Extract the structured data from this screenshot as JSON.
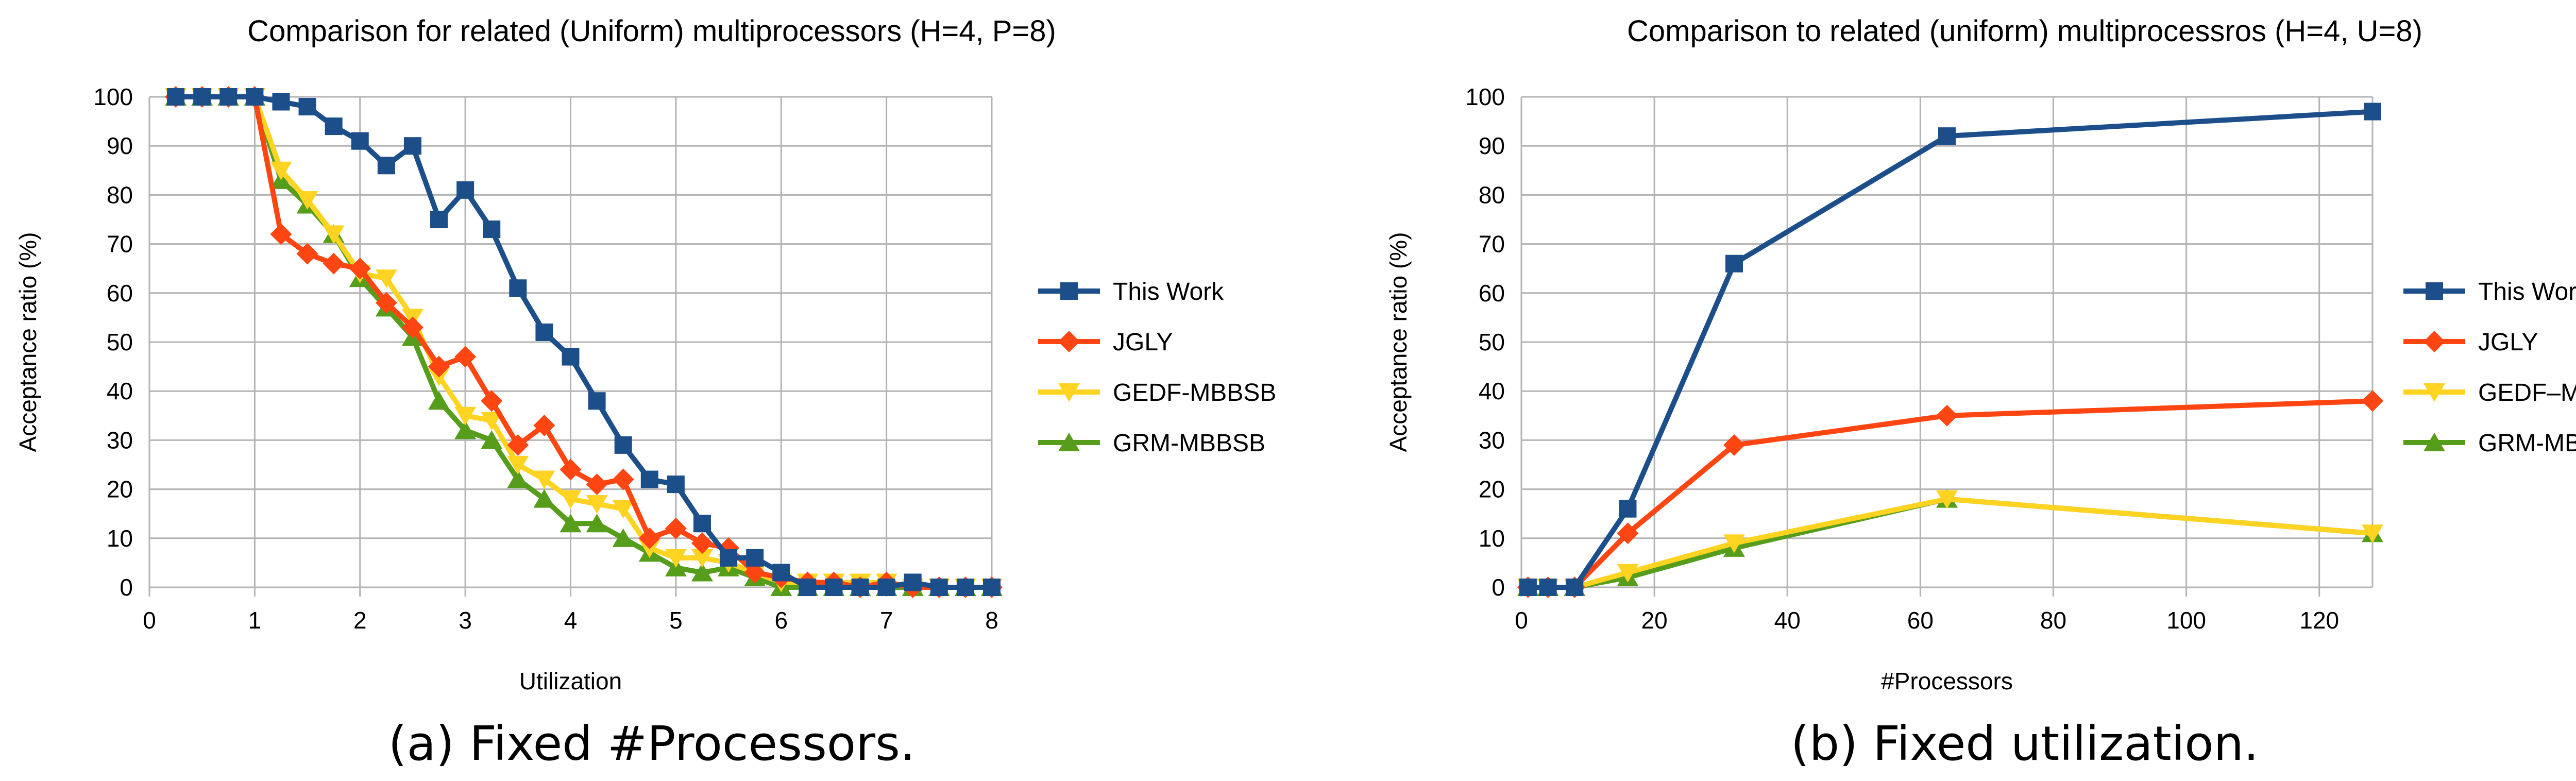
{
  "chart_data": [
    {
      "type": "line",
      "title": "Comparison for related (Uniform) multiprocessors (H=4, P=8)",
      "xlabel": "Utilization",
      "ylabel": "Acceptance ratio (%)",
      "xlim": [
        0,
        8
      ],
      "ylim": [
        0,
        100
      ],
      "xticks": [
        "0",
        "1",
        "2",
        "3",
        "4",
        "5",
        "6",
        "7",
        "8"
      ],
      "yticks": [
        "0",
        "10",
        "20",
        "30",
        "40",
        "50",
        "60",
        "70",
        "80",
        "90",
        "100"
      ],
      "grid": true,
      "legend_position": "right",
      "caption": "(a) Fixed #Processors.",
      "x": [
        0.25,
        0.5,
        0.75,
        1.0,
        1.25,
        1.5,
        1.75,
        2.0,
        2.25,
        2.5,
        2.75,
        3.0,
        3.25,
        3.5,
        3.75,
        4.0,
        4.25,
        4.5,
        4.75,
        5.0,
        5.25,
        5.5,
        5.75,
        6.0,
        6.25,
        6.5,
        6.75,
        7.0,
        7.25,
        7.5,
        7.75,
        8.0
      ],
      "series": [
        {
          "name": "This Work",
          "color": "#1c4e8a",
          "marker": "square",
          "values": [
            100,
            100,
            100,
            100,
            99,
            98,
            94,
            91,
            86,
            90,
            75,
            81,
            73,
            61,
            52,
            47,
            38,
            29,
            22,
            21,
            13,
            6,
            6,
            3,
            0,
            0,
            0,
            0,
            1,
            0,
            0,
            0
          ]
        },
        {
          "name": "JGLY",
          "color": "#ff4512",
          "marker": "diamond",
          "values": [
            100,
            100,
            100,
            100,
            72,
            68,
            66,
            65,
            58,
            53,
            45,
            47,
            38,
            29,
            33,
            24,
            21,
            22,
            10,
            12,
            9,
            8,
            3,
            2,
            1,
            1,
            0,
            1,
            0,
            0,
            0,
            0
          ]
        },
        {
          "name": "GEDF-MBBSB",
          "color": "#ffd321",
          "marker": "triangle-down",
          "values": [
            100,
            100,
            100,
            100,
            85,
            79,
            72,
            64,
            63,
            55,
            43,
            35,
            34,
            25,
            22,
            18,
            17,
            16,
            8,
            6,
            6,
            5,
            3,
            1,
            1,
            1,
            1,
            1,
            0,
            0,
            0,
            0
          ]
        },
        {
          "name": "GRM-MBBSB",
          "color": "#579d1c",
          "marker": "triangle-up",
          "values": [
            100,
            100,
            100,
            100,
            83,
            78,
            72,
            63,
            57,
            51,
            38,
            32,
            30,
            22,
            18,
            13,
            13,
            10,
            7,
            4,
            3,
            4,
            2,
            0,
            0,
            0,
            0,
            0,
            0,
            0,
            0,
            0
          ]
        }
      ]
    },
    {
      "type": "line",
      "title": "Comparison  to related (uniform) multiprocessros (H=4, U=8)",
      "xlabel": "#Processors",
      "ylabel": "Acceptance ratio (%)",
      "xlim": [
        0,
        128
      ],
      "ylim": [
        0,
        100
      ],
      "xticks": [
        "0",
        "20",
        "40",
        "60",
        "80",
        "100",
        "120"
      ],
      "xtick_values": [
        0,
        20,
        40,
        60,
        80,
        100,
        120
      ],
      "yticks": [
        "0",
        "10",
        "20",
        "30",
        "40",
        "50",
        "60",
        "70",
        "80",
        "90",
        "100"
      ],
      "grid": true,
      "legend_position": "right",
      "caption": "(b) Fixed utilization.",
      "x": [
        1,
        4,
        8,
        16,
        32,
        64,
        128
      ],
      "series": [
        {
          "name": "This Work",
          "color": "#1c4e8a",
          "marker": "square",
          "values": [
            0,
            0,
            0,
            16,
            66,
            92,
            97
          ]
        },
        {
          "name": "JGLY",
          "color": "#ff4512",
          "marker": "diamond",
          "values": [
            0,
            0,
            0,
            11,
            29,
            35,
            38
          ]
        },
        {
          "name": "GEDF–MBBSB",
          "color": "#ffd321",
          "marker": "triangle-down",
          "values": [
            0,
            0,
            0,
            3,
            9,
            18,
            11
          ]
        },
        {
          "name": "GRM-MBBSB",
          "color": "#579d1c",
          "marker": "triangle-up",
          "values": [
            0,
            0,
            0,
            2,
            8,
            18,
            11
          ]
        }
      ]
    }
  ]
}
